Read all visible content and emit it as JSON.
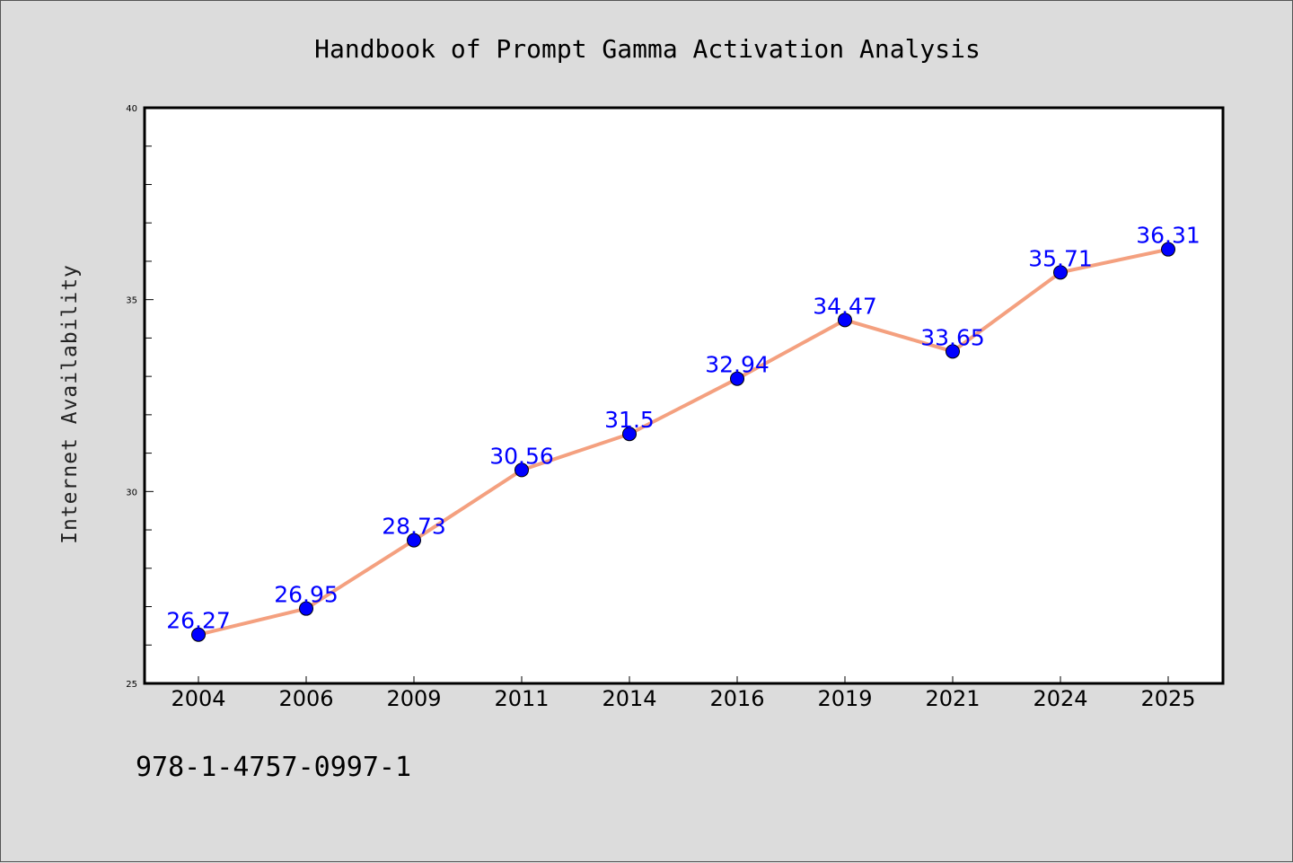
{
  "chart_data": {
    "type": "line",
    "title": "Handbook of Prompt Gamma Activation Analysis",
    "xlabel": "",
    "ylabel": "Internet Availability",
    "categories": [
      "2004",
      "2006",
      "2009",
      "2011",
      "2014",
      "2016",
      "2019",
      "2021",
      "2024",
      "2025"
    ],
    "series": [
      {
        "values": [
          26.27,
          26.95,
          28.73,
          30.56,
          31.5,
          32.94,
          34.47,
          33.65,
          35.71,
          36.31
        ],
        "labels": [
          "26.27",
          "26.95",
          "28.73",
          "30.56",
          "31.5",
          "32.94",
          "34.47",
          "33.65",
          "35.71",
          "36.31"
        ],
        "line_color": "#f4a07f",
        "marker_color": "#0000ff"
      }
    ],
    "ylim": [
      25,
      40
    ],
    "yticks": [
      25,
      30,
      35,
      40
    ],
    "ytick_labels": [
      "25",
      "30",
      "35",
      "40"
    ],
    "grid": false,
    "legend": "none"
  },
  "footer": {
    "isbn": "978-1-4757-0997-1"
  },
  "colors": {
    "background": "#dcdcdc",
    "plot_background": "#ffffff"
  }
}
